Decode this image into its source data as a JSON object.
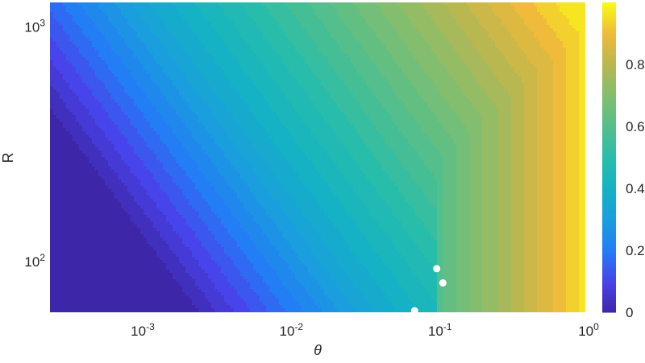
{
  "chart_data": {
    "type": "heatmap",
    "title": "",
    "xlabel": "θ",
    "ylabel": "R",
    "x_scale": "log",
    "y_scale": "log",
    "xlim": [
      0.00025,
      1.0
    ],
    "ylim": [
      60,
      1250
    ],
    "x_ticks": [
      {
        "value": 0.001,
        "base": "10",
        "exp": "-3"
      },
      {
        "value": 0.01,
        "base": "10",
        "exp": "-2"
      },
      {
        "value": 0.1,
        "base": "10",
        "exp": "-1"
      },
      {
        "value": 1.0,
        "base": "10",
        "exp": "0"
      }
    ],
    "y_ticks": [
      {
        "value": 100,
        "base": "10",
        "exp": "2"
      },
      {
        "value": 1000,
        "base": "10",
        "exp": "3"
      }
    ],
    "colorbar": {
      "range": [
        0,
        1
      ],
      "ticks": [
        {
          "value": 0,
          "label": "0"
        },
        {
          "value": 0.2,
          "label": "0.2"
        },
        {
          "value": 0.4,
          "label": "0.4"
        },
        {
          "value": 0.6,
          "label": "0.6"
        },
        {
          "value": 0.8,
          "label": "0.8"
        }
      ],
      "colormap": "parula"
    },
    "points": [
      {
        "x": 0.071,
        "y": 60
      },
      {
        "x": 0.1,
        "y": 92
      },
      {
        "x": 0.11,
        "y": 80
      }
    ],
    "contour_levels": 30
  }
}
